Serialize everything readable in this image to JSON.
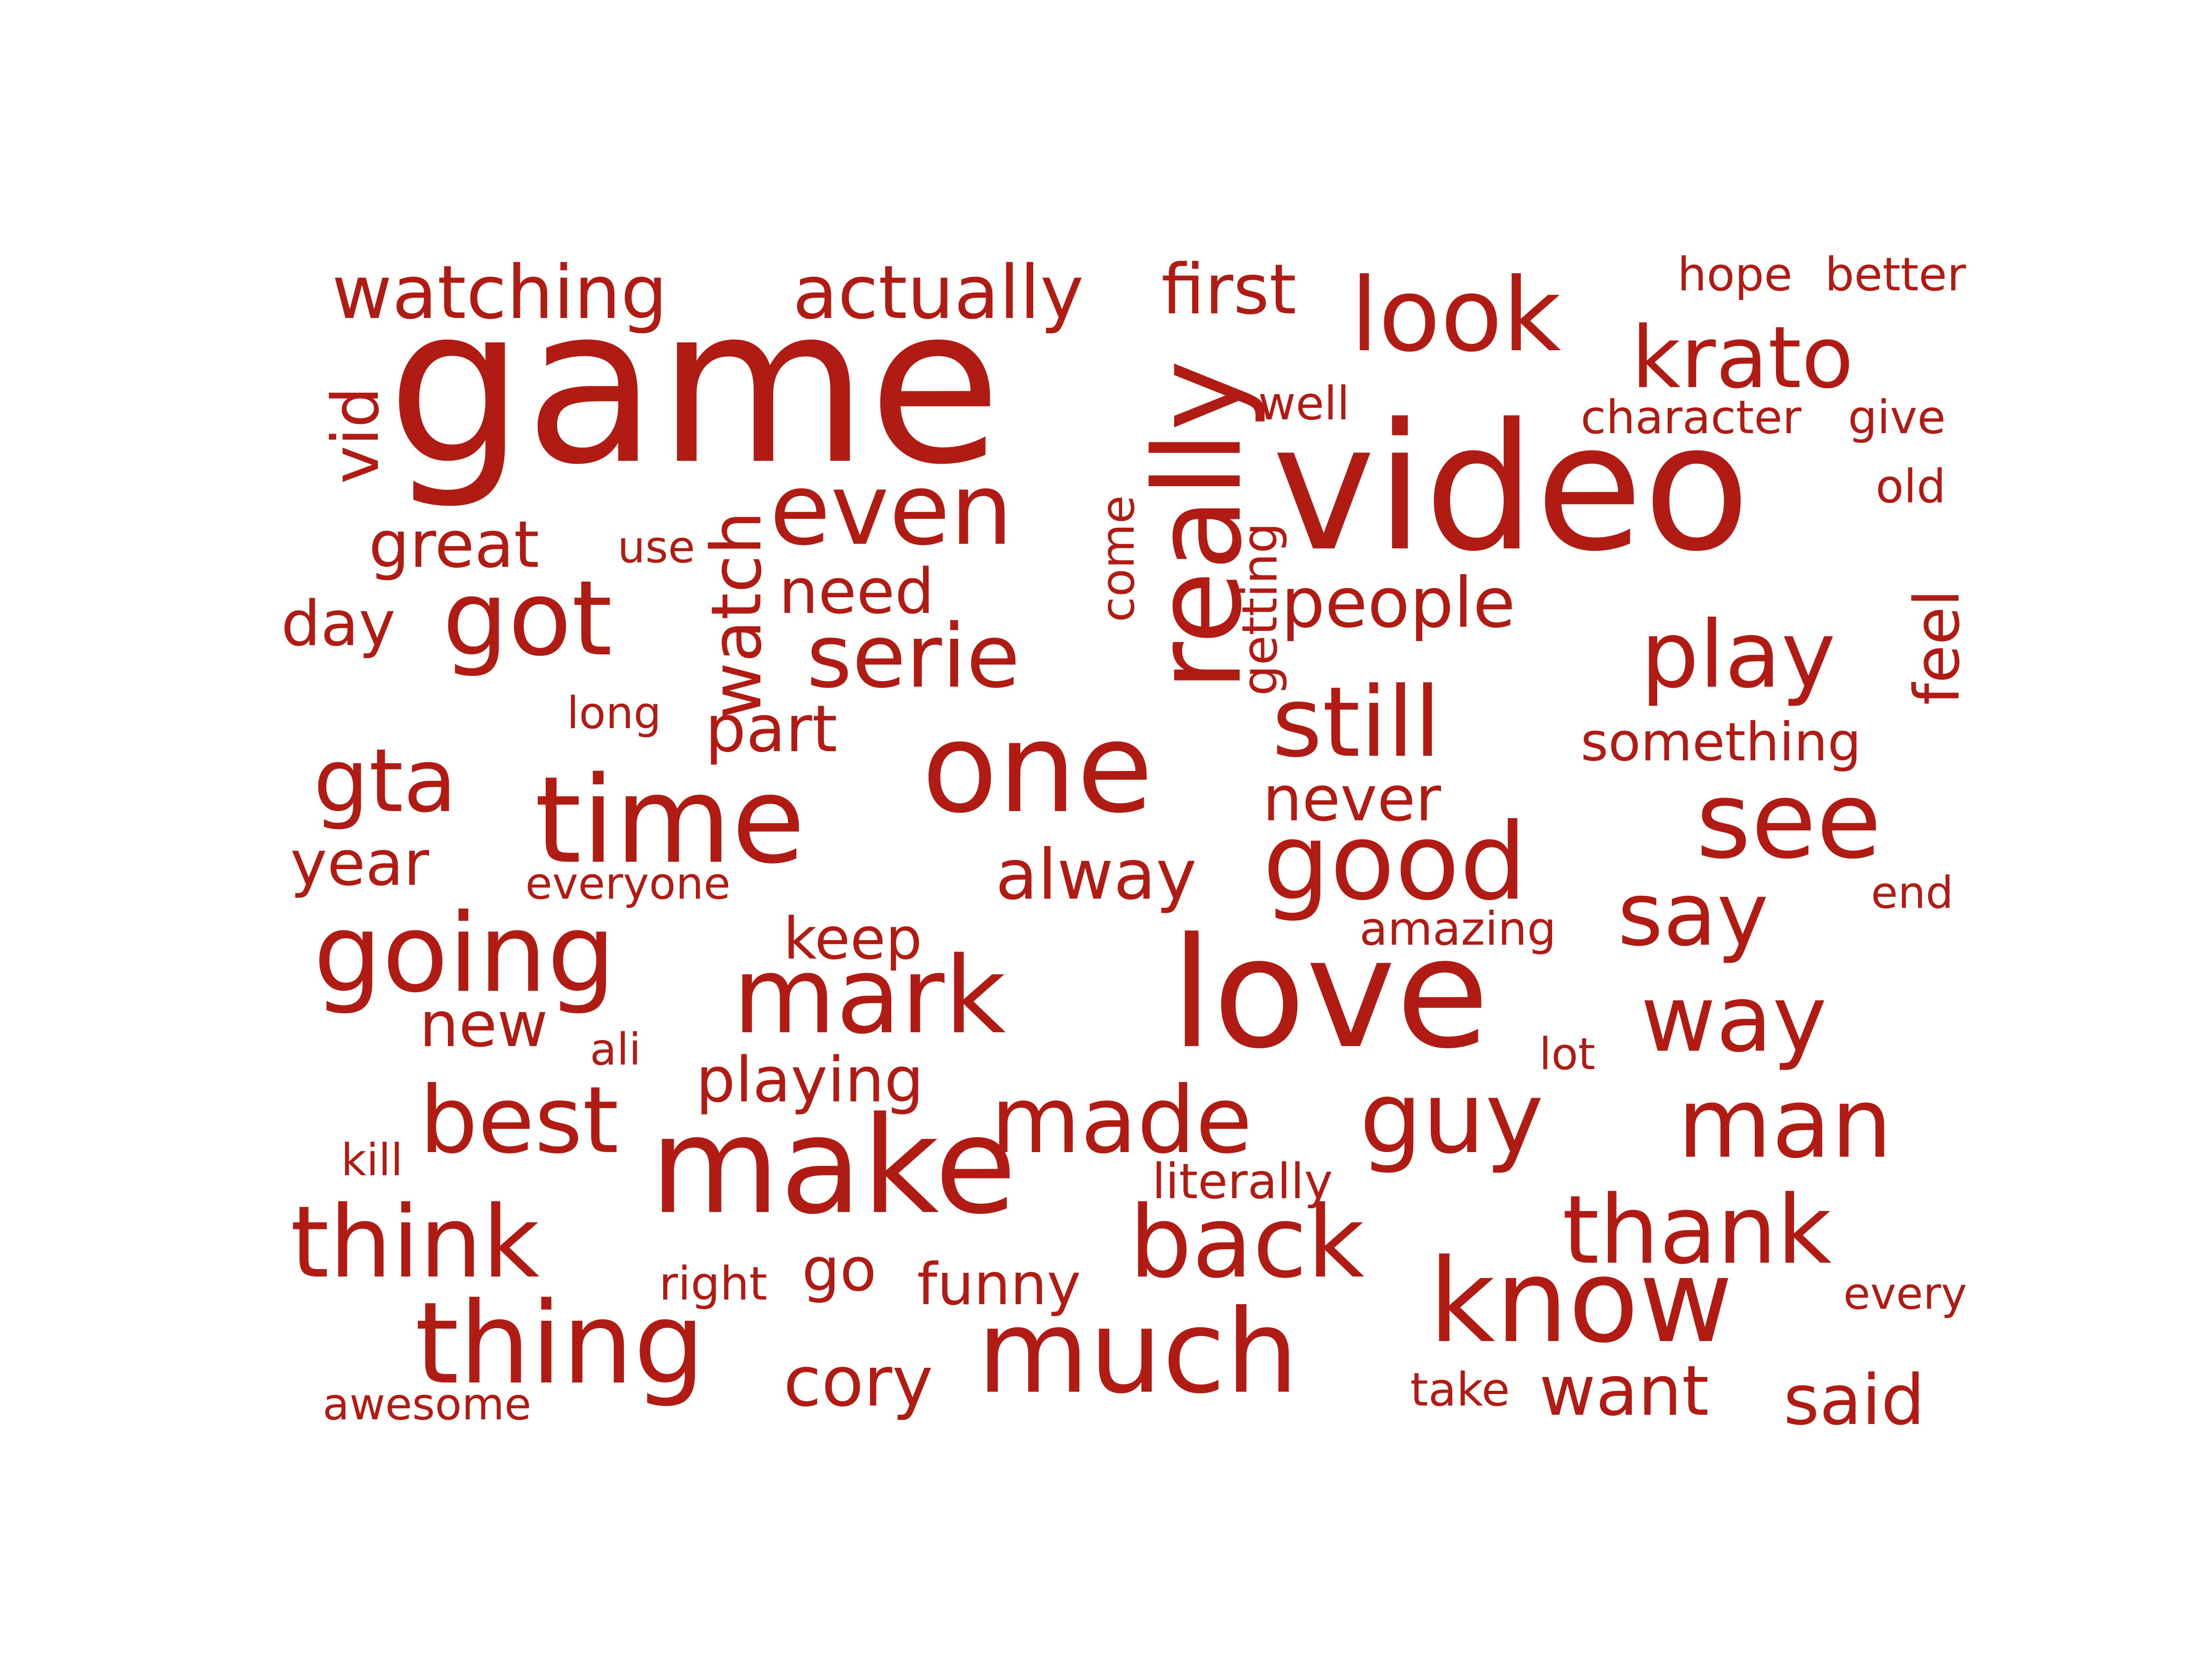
{
  "word_cloud": {
    "color": "#b01c14",
    "words": [
      {
        "text": "game",
        "weight": 100
      },
      {
        "text": "video",
        "weight": 98
      },
      {
        "text": "love",
        "weight": 80
      },
      {
        "text": "make",
        "weight": 78
      },
      {
        "text": "one",
        "weight": 75
      },
      {
        "text": "time",
        "weight": 70
      },
      {
        "text": "really",
        "weight": 70
      },
      {
        "text": "much",
        "weight": 68
      },
      {
        "text": "know",
        "weight": 68
      },
      {
        "text": "thing",
        "weight": 66
      },
      {
        "text": "going",
        "weight": 64
      },
      {
        "text": "good",
        "weight": 64
      },
      {
        "text": "see",
        "weight": 62
      },
      {
        "text": "mark",
        "weight": 62
      },
      {
        "text": "look",
        "weight": 60
      },
      {
        "text": "got",
        "weight": 60
      },
      {
        "text": "even",
        "weight": 58
      },
      {
        "text": "think",
        "weight": 58
      },
      {
        "text": "guy",
        "weight": 58
      },
      {
        "text": "back",
        "weight": 58
      },
      {
        "text": "thank",
        "weight": 56
      },
      {
        "text": "still",
        "weight": 56
      },
      {
        "text": "play",
        "weight": 56
      },
      {
        "text": "man",
        "weight": 56
      },
      {
        "text": "made",
        "weight": 54
      },
      {
        "text": "way",
        "weight": 54
      },
      {
        "text": "serie",
        "weight": 52
      },
      {
        "text": "gta",
        "weight": 52
      },
      {
        "text": "best",
        "weight": 52
      },
      {
        "text": "say",
        "weight": 50
      },
      {
        "text": "krato",
        "weight": 50
      },
      {
        "text": "watch",
        "weight": 44
      },
      {
        "text": "actually",
        "weight": 42
      },
      {
        "text": "watching",
        "weight": 42
      },
      {
        "text": "cory",
        "weight": 40
      },
      {
        "text": "want",
        "weight": 40
      },
      {
        "text": "said",
        "weight": 40
      },
      {
        "text": "people",
        "weight": 40
      },
      {
        "text": "alway",
        "weight": 40
      },
      {
        "text": "first",
        "weight": 38
      },
      {
        "text": "great",
        "weight": 36
      },
      {
        "text": "vid",
        "weight": 36
      },
      {
        "text": "feel",
        "weight": 36
      },
      {
        "text": "playing",
        "weight": 36
      },
      {
        "text": "part",
        "weight": 36
      },
      {
        "text": "year",
        "weight": 35
      },
      {
        "text": "day",
        "weight": 35
      },
      {
        "text": "need",
        "weight": 35
      },
      {
        "text": "never",
        "weight": 35
      },
      {
        "text": "new",
        "weight": 35
      },
      {
        "text": "keep",
        "weight": 33
      },
      {
        "text": "funny",
        "weight": 33
      },
      {
        "text": "go",
        "weight": 33
      },
      {
        "text": "something",
        "weight": 31
      },
      {
        "text": "getting",
        "weight": 28
      },
      {
        "text": "come",
        "weight": 28
      },
      {
        "text": "literally",
        "weight": 28
      },
      {
        "text": "hope",
        "weight": 28
      },
      {
        "text": "better",
        "weight": 28
      },
      {
        "text": "character",
        "weight": 28
      },
      {
        "text": "give",
        "weight": 28
      },
      {
        "text": "amazing",
        "weight": 28
      },
      {
        "text": "take",
        "weight": 28
      },
      {
        "text": "well",
        "weight": 28
      },
      {
        "text": "old",
        "weight": 28
      },
      {
        "text": "end",
        "weight": 27
      },
      {
        "text": "every",
        "weight": 27
      },
      {
        "text": "right",
        "weight": 27
      },
      {
        "text": "ali",
        "weight": 27
      },
      {
        "text": "lot",
        "weight": 27
      },
      {
        "text": "kill",
        "weight": 27
      },
      {
        "text": "awesome",
        "weight": 27
      },
      {
        "text": "long",
        "weight": 26
      },
      {
        "text": "use",
        "weight": 26
      },
      {
        "text": "everyone",
        "weight": 26
      }
    ]
  }
}
